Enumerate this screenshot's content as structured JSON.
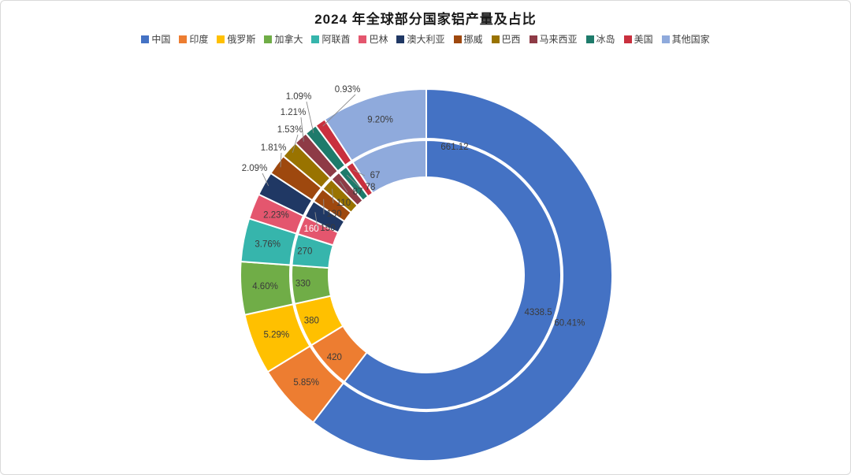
{
  "title": "2024 年全球部分国家铝产量及占比",
  "chart_data": {
    "type": "pie",
    "subtype": "double-ring-donut",
    "title": "2024 年全球部分国家铝产量及占比",
    "legend_position": "top",
    "rings": {
      "outer_labels": "percent",
      "inner_labels": "value"
    },
    "categories": [
      "中国",
      "印度",
      "俄罗斯",
      "加拿大",
      "阿联酋",
      "巴林",
      "澳大利亚",
      "挪威",
      "巴西",
      "马来西亚",
      "冰岛",
      "美国",
      "其他国家"
    ],
    "values": [
      4338.5,
      420,
      380,
      330,
      270,
      160,
      150,
      130,
      110,
      87,
      78,
      67,
      661.12
    ],
    "value_labels": [
      "4338.5",
      "420",
      "380",
      "330",
      "270",
      "160",
      "150",
      "130",
      "110",
      "87",
      "78",
      "67",
      "661.12"
    ],
    "percent_labels": [
      "60.41%",
      "5.85%",
      "5.29%",
      "4.60%",
      "3.76%",
      "2.23%",
      "2.09%",
      "1.81%",
      "1.53%",
      "1.21%",
      "1.09%",
      "0.93%",
      "9.20%"
    ],
    "colors": [
      "#4472C4",
      "#ED7D31",
      "#FFC000",
      "#70AD47",
      "#36B5AC",
      "#E4566E",
      "#203864",
      "#9E480E",
      "#997300",
      "#8E3B46",
      "#1E7B6B",
      "#C9303E",
      "#8FAADC"
    ],
    "label_color": "#3b3b3b",
    "background": "#ffffff"
  }
}
